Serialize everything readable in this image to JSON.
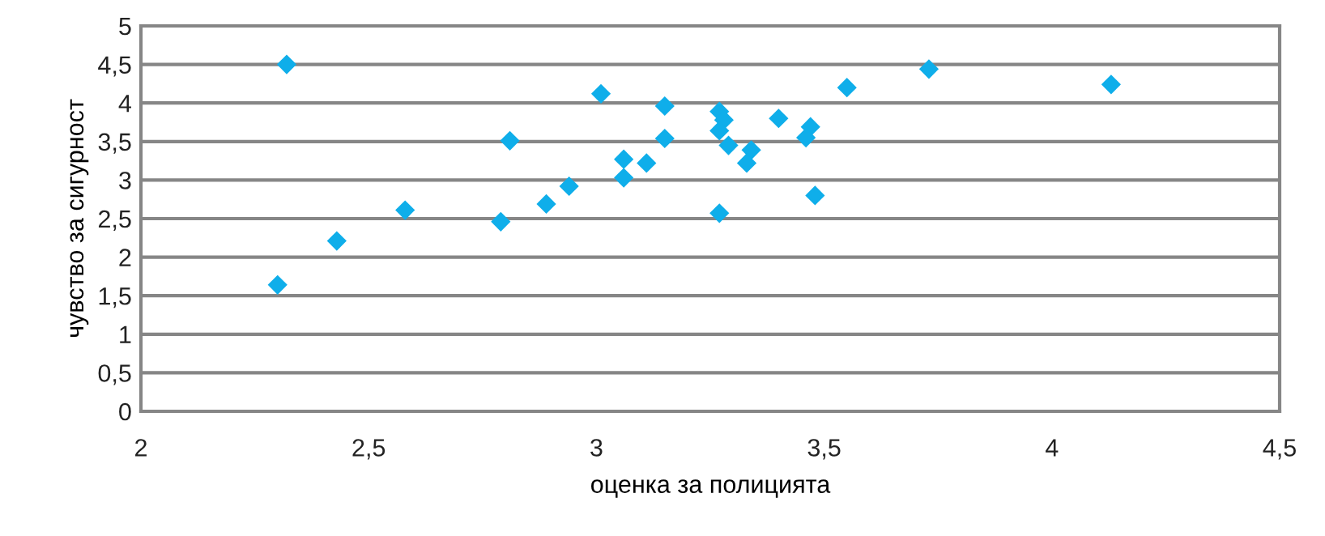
{
  "chart_data": {
    "type": "scatter",
    "xlabel": "оценка за полицията",
    "ylabel": "чувство за сигурност",
    "marker": "diamond",
    "grid": "y",
    "legend": false,
    "x": [
      2.3,
      2.32,
      2.43,
      2.58,
      2.79,
      2.81,
      2.89,
      2.94,
      3.01,
      3.06,
      3.06,
      3.11,
      3.15,
      3.15,
      3.27,
      3.28,
      3.27,
      3.29,
      3.34,
      3.33,
      3.27,
      3.4,
      3.47,
      3.46,
      3.48,
      3.55,
      3.73,
      4.13
    ],
    "series": [
      {
        "color": "#0faeea",
        "values": [
          1.64,
          4.5,
          2.21,
          2.61,
          2.46,
          3.51,
          2.69,
          2.92,
          4.12,
          3.27,
          3.03,
          3.22,
          3.96,
          3.54,
          3.89,
          3.78,
          3.64,
          3.45,
          3.39,
          3.22,
          2.57,
          3.8,
          3.69,
          3.55,
          2.8,
          4.2,
          4.44,
          4.24
        ]
      }
    ],
    "xlim": [
      2,
      4.5
    ],
    "xticks": [
      2,
      {
        "value": 2.5,
        "label": "2,5"
      },
      3,
      {
        "value": 3.5,
        "label": "3,5"
      },
      4,
      {
        "value": 4.5,
        "label": "4,5"
      }
    ],
    "ylim": [
      0,
      5
    ],
    "yticks": [
      0,
      {
        "value": 0.5,
        "label": "0,5"
      },
      1,
      {
        "value": 1.5,
        "label": "1,5"
      },
      2,
      {
        "value": 2.5,
        "label": "2,5"
      },
      3,
      {
        "value": 3.5,
        "label": "3,5"
      },
      4,
      {
        "value": 4.5,
        "label": "4,5"
      },
      5
    ]
  }
}
